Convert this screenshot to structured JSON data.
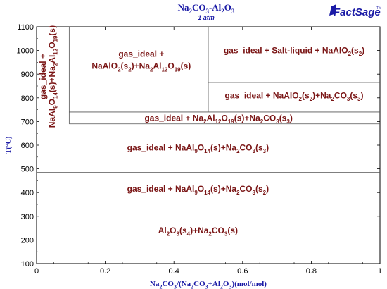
{
  "chart_data": {
    "type": "phase-diagram",
    "title": "Na2CO3-Al2O3",
    "subtitle": "1 atm",
    "xlabel": "Na2CO3/(Na2CO3+Al2O3)(mol/mol)",
    "ylabel": "T(°C)",
    "xlim": [
      0,
      1
    ],
    "ylim": [
      100,
      1100
    ],
    "xticks": [
      "0",
      "0.2",
      "0.4",
      "0.6",
      "0.8",
      "1"
    ],
    "yticks": [
      "100",
      "200",
      "300",
      "400",
      "500",
      "600",
      "700",
      "800",
      "900",
      "1000",
      "1100"
    ],
    "boundaries": {
      "horizontal": [
        {
          "y": 360,
          "x0": 0,
          "x1": 1
        },
        {
          "y": 485,
          "x0": 0,
          "x1": 1
        },
        {
          "y": 690,
          "x0": 0.095,
          "x1": 1
        },
        {
          "y": 740,
          "x0": 0.095,
          "x1": 1
        },
        {
          "y": 865,
          "x0": 0.5,
          "x1": 1
        }
      ],
      "vertical": [
        {
          "x": 0.095,
          "y0": 690,
          "y1": 1100
        },
        {
          "x": 0.5,
          "y0": 740,
          "y1": 1100
        }
      ]
    },
    "regions": [
      {
        "id": "r-topleft-narrow",
        "label": "gas_ideal + NaAl9O14(s)+Na2Al12O19(s)",
        "x": 0.035,
        "y": 890,
        "rotate": -90
      },
      {
        "id": "r-top-mid",
        "label_lines": [
          "gas_ideal +",
          "NaAlO2(s2)+Na2Al12O19(s)"
        ],
        "x": 0.305,
        "y": 955
      },
      {
        "id": "r-top-right",
        "label": "gas_ideal + Salt-liquid + NaAlO2(s2)",
        "x": 0.75,
        "y": 1000
      },
      {
        "id": "r-right-mid",
        "label": "gas_ideal + NaAlO2(s2)+Na2CO3(s3)",
        "x": 0.75,
        "y": 810
      },
      {
        "id": "r-band",
        "label": "gas_ideal + Na2Al12O19(s)+Na2CO3(s3)",
        "x": 0.53,
        "y": 715
      },
      {
        "id": "r-mid",
        "label": "gas_ideal + NaAl9O14(s)+Na2CO3(s3)",
        "x": 0.47,
        "y": 590
      },
      {
        "id": "r-low",
        "label": "gas_ideal + NaAl9O14(s)+Na2CO3(s2)",
        "x": 0.47,
        "y": 415
      },
      {
        "id": "r-bottom",
        "label": "Al2O3(s4)+Na2CO3(s)",
        "x": 0.47,
        "y": 240
      }
    ]
  },
  "logo": {
    "text": "FactSage",
    "tm": "TM"
  },
  "colors": {
    "text_blue": "#1a1aa6",
    "region_red": "#7a1515",
    "line": "#555555"
  }
}
